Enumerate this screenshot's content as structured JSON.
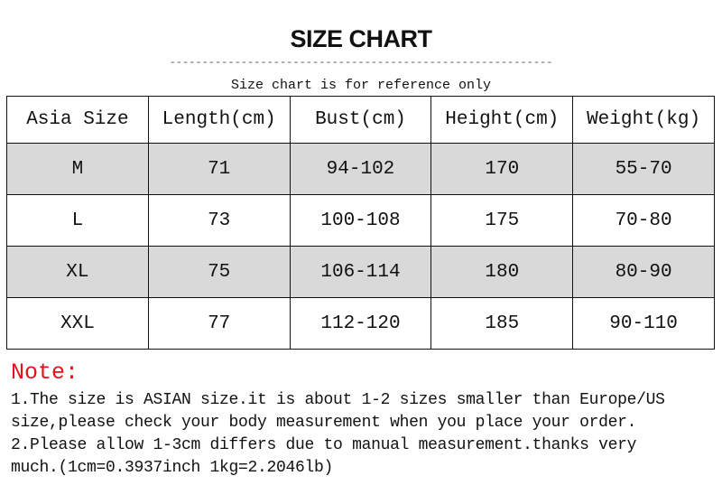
{
  "title": "SIZE CHART",
  "divider": "-----------------------------------------------------------",
  "subtitle": "Size chart is for reference only",
  "table": {
    "headers": [
      "Asia Size",
      "Length(cm)",
      "Bust(cm)",
      "Height(cm)",
      "Weight(kg)"
    ],
    "rows": [
      [
        "M",
        "71",
        "94-102",
        "170",
        "55-70"
      ],
      [
        "L",
        "73",
        "100-108",
        "175",
        "70-80"
      ],
      [
        "XL",
        "75",
        "106-114",
        "180",
        "80-90"
      ],
      [
        "XXL",
        "77",
        "112-120",
        "185",
        "90-110"
      ]
    ],
    "shaded_row_color": "#d9d9d9"
  },
  "note": {
    "label": "Note:",
    "label_color": "#e8101a",
    "lines": [
      "1.The size is ASIAN size.it is about 1-2 sizes smaller than Europe/US",
      "size,please check your body measurement when you place your order.",
      "2.Please allow 1-3cm differs due to manual measurement.thanks very",
      "much.(1cm=0.3937inch 1kg=2.2046lb)"
    ]
  }
}
